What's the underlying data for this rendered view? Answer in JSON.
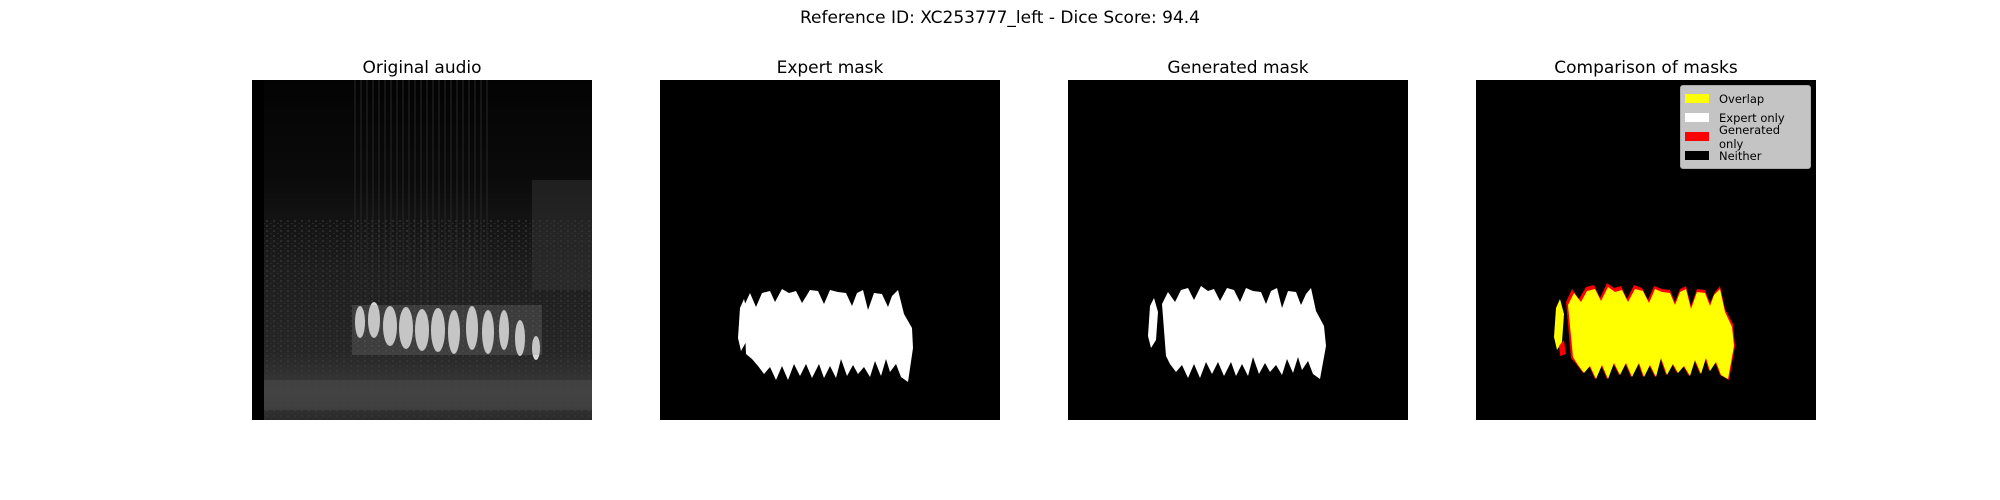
{
  "figure": {
    "title": "Reference ID: XC253777_left - Dice Score: 94.4"
  },
  "panels": [
    {
      "title": "Original audio",
      "image": "spectrogram"
    },
    {
      "title": "Expert mask",
      "image": "expert-mask"
    },
    {
      "title": "Generated mask",
      "image": "generated-mask"
    },
    {
      "title": "Comparison of masks",
      "image": "comparison-mask"
    }
  ],
  "legend": {
    "items": [
      {
        "label": "Overlap",
        "color": "#ffff00"
      },
      {
        "label": "Expert only",
        "color": "#ffffff"
      },
      {
        "label": "Generated only",
        "color": "#ff0000"
      },
      {
        "label": "Neither",
        "color": "#000000"
      }
    ]
  },
  "colors": {
    "background": "#000000",
    "mask": "#ffffff",
    "overlap": "#ffff00",
    "generated_only": "#ff0000"
  }
}
